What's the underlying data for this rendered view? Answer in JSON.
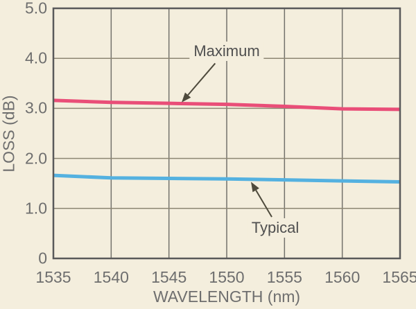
{
  "figure": {
    "background": "#f4eedd",
    "frame_color": "#59595a",
    "grid_color_horizontal": "#8d8673",
    "grid_color_vertical": "#73716b",
    "tick_text_color": "#6e6e6e",
    "annotation_text_color": "#4f4f4f",
    "arrow_color": "#4e4a3c"
  },
  "chart_data": {
    "type": "line",
    "title": "",
    "xlabel": "WAVELENGTH (nm)",
    "ylabel": "LOSS (dB)",
    "xlim": [
      1535,
      1565
    ],
    "ylim": [
      0,
      5
    ],
    "grid": true,
    "legend_position": "none",
    "x_ticks": {
      "values": [
        1535,
        1540,
        1545,
        1550,
        1555,
        1560,
        1565
      ],
      "labels": [
        "1535",
        "1540",
        "1545",
        "1550",
        "1555",
        "1560",
        "1565"
      ]
    },
    "y_ticks": {
      "values": [
        0,
        1,
        2,
        3,
        4,
        5
      ],
      "labels": [
        "0",
        "1.0",
        "2.0",
        "3.0",
        "4.0",
        "5.0"
      ]
    },
    "x": [
      1535,
      1540,
      1545,
      1550,
      1555,
      1560,
      1565
    ],
    "series": [
      {
        "name": "Maximum",
        "color": "#e94e78",
        "line_width": 5,
        "values": [
          3.16,
          3.12,
          3.1,
          3.08,
          3.04,
          2.99,
          2.98
        ]
      },
      {
        "name": "Typical",
        "color": "#54b1e0",
        "line_width": 5,
        "values": [
          1.66,
          1.61,
          1.6,
          1.59,
          1.57,
          1.55,
          1.53
        ]
      }
    ],
    "annotations": [
      {
        "text": "Maximum",
        "label_x": 1550.0,
        "label_y": 4.14,
        "arrow_from": [
          1549.0,
          3.9
        ],
        "arrow_to": [
          1546.1,
          3.12
        ]
      },
      {
        "text": "Typical",
        "label_x": 1554.2,
        "label_y": 0.61,
        "arrow_from": [
          1553.9,
          0.83
        ],
        "arrow_to": [
          1552.1,
          1.53
        ]
      }
    ]
  }
}
